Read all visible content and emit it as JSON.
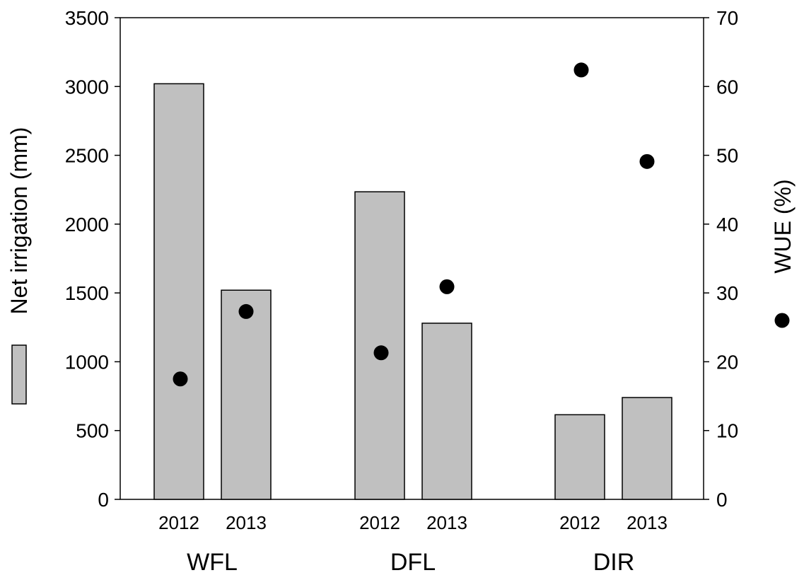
{
  "chart_data": {
    "type": "bar",
    "groups": [
      "WFL",
      "DFL",
      "DIR"
    ],
    "years": [
      "2012",
      "2013"
    ],
    "categories": [
      "WFL 2012",
      "WFL 2013",
      "DFL 2012",
      "DFL 2013",
      "DIR 2012",
      "DIR 2013"
    ],
    "series": [
      {
        "name": "Net irrigation (mm)",
        "type": "bar",
        "axis": "left",
        "color": "#c0c0c0",
        "values": [
          3020,
          1520,
          2235,
          1280,
          615,
          740
        ]
      },
      {
        "name": "WUE (%)",
        "type": "scatter",
        "axis": "right",
        "color": "#000000",
        "values": [
          17.5,
          27.3,
          21.3,
          30.9,
          62.4,
          49.1
        ]
      }
    ],
    "ylabel": "Net irrigation (mm)",
    "ylabel_right": "WUE (%)",
    "ylim": [
      0,
      3500
    ],
    "ylim_right": [
      0,
      70
    ],
    "yticks": [
      "0",
      "500",
      "1000",
      "1500",
      "2000",
      "2500",
      "3000",
      "3500"
    ],
    "yticks_right": [
      "0",
      "10",
      "20",
      "30",
      "40",
      "50",
      "60",
      "70"
    ],
    "grid": false
  }
}
